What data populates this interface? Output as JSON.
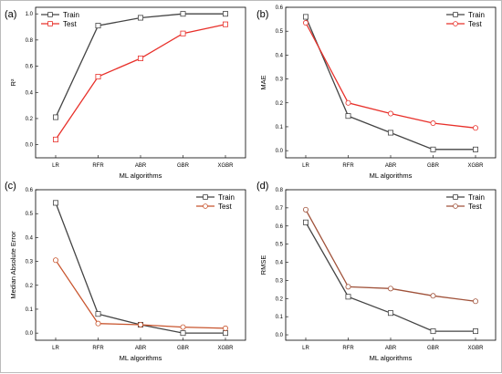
{
  "chart_data": [
    {
      "type": "line",
      "panel_label": "(a)",
      "categories": [
        "LR",
        "RFR",
        "ABR",
        "GBR",
        "XGBR"
      ],
      "xlabel": "ML algorithms",
      "ylabel": "R²",
      "ylim": [
        -0.1,
        1.05
      ],
      "yticks": [
        0.0,
        0.2,
        0.4,
        0.6,
        0.8,
        1.0
      ],
      "ytick_labels": [
        "0.0",
        "0.2",
        "0.4",
        "0.6",
        "0.8",
        "1.0"
      ],
      "legend": "top-left",
      "series": [
        {
          "name": "Train",
          "color": "#444444",
          "values": [
            0.21,
            0.91,
            0.97,
            1.0,
            1.0
          ]
        },
        {
          "name": "Test",
          "color": "#e8302a",
          "values": [
            0.04,
            0.52,
            0.66,
            0.85,
            0.92
          ]
        }
      ]
    },
    {
      "type": "line",
      "panel_label": "(b)",
      "categories": [
        "LR",
        "RFR",
        "ABR",
        "GBR",
        "XGBR"
      ],
      "xlabel": "ML algorithms",
      "ylabel": "MAE",
      "ylim": [
        -0.03,
        0.6
      ],
      "yticks": [
        0.0,
        0.1,
        0.2,
        0.3,
        0.4,
        0.5,
        0.6
      ],
      "ytick_labels": [
        "0.0",
        "0.1",
        "0.2",
        "0.3",
        "0.4",
        "0.5",
        "0.6"
      ],
      "legend": "top-right",
      "series": [
        {
          "name": "Train",
          "color": "#444444",
          "values": [
            0.56,
            0.145,
            0.075,
            0.005,
            0.005
          ]
        },
        {
          "name": "Test",
          "color": "#e8302a",
          "values": [
            0.535,
            0.2,
            0.155,
            0.115,
            0.095
          ]
        }
      ]
    },
    {
      "type": "line",
      "panel_label": "(c)",
      "categories": [
        "LR",
        "RFR",
        "ABR",
        "GBR",
        "XGBR"
      ],
      "xlabel": "ML algorithms",
      "ylabel": "Median Absolute Error",
      "ylim": [
        -0.03,
        0.6
      ],
      "yticks": [
        0.0,
        0.1,
        0.2,
        0.3,
        0.4,
        0.5,
        0.6
      ],
      "ytick_labels": [
        "0.0",
        "0.1",
        "0.2",
        "0.3",
        "0.4",
        "0.5",
        "0.6"
      ],
      "legend": "top-right",
      "series": [
        {
          "name": "Train",
          "color": "#444444",
          "values": [
            0.545,
            0.08,
            0.035,
            0.0,
            0.0
          ]
        },
        {
          "name": "Test",
          "color": "#c8552e",
          "values": [
            0.305,
            0.04,
            0.035,
            0.025,
            0.02
          ]
        }
      ]
    },
    {
      "type": "line",
      "panel_label": "(d)",
      "categories": [
        "LR",
        "RFR",
        "ABR",
        "GBR",
        "XGBR"
      ],
      "xlabel": "ML algorithms",
      "ylabel": "RMSE",
      "ylim": [
        -0.03,
        0.8
      ],
      "yticks": [
        0.0,
        0.1,
        0.2,
        0.3,
        0.4,
        0.5,
        0.6,
        0.7,
        0.8
      ],
      "ytick_labels": [
        "0.0",
        "0.1",
        "0.2",
        "0.3",
        "0.4",
        "0.5",
        "0.6",
        "0.7",
        "0.8"
      ],
      "legend": "top-right",
      "series": [
        {
          "name": "Train",
          "color": "#444444",
          "values": [
            0.62,
            0.21,
            0.12,
            0.02,
            0.02
          ]
        },
        {
          "name": "Test",
          "color": "#a0523a",
          "values": [
            0.69,
            0.265,
            0.255,
            0.215,
            0.185
          ]
        }
      ]
    }
  ]
}
